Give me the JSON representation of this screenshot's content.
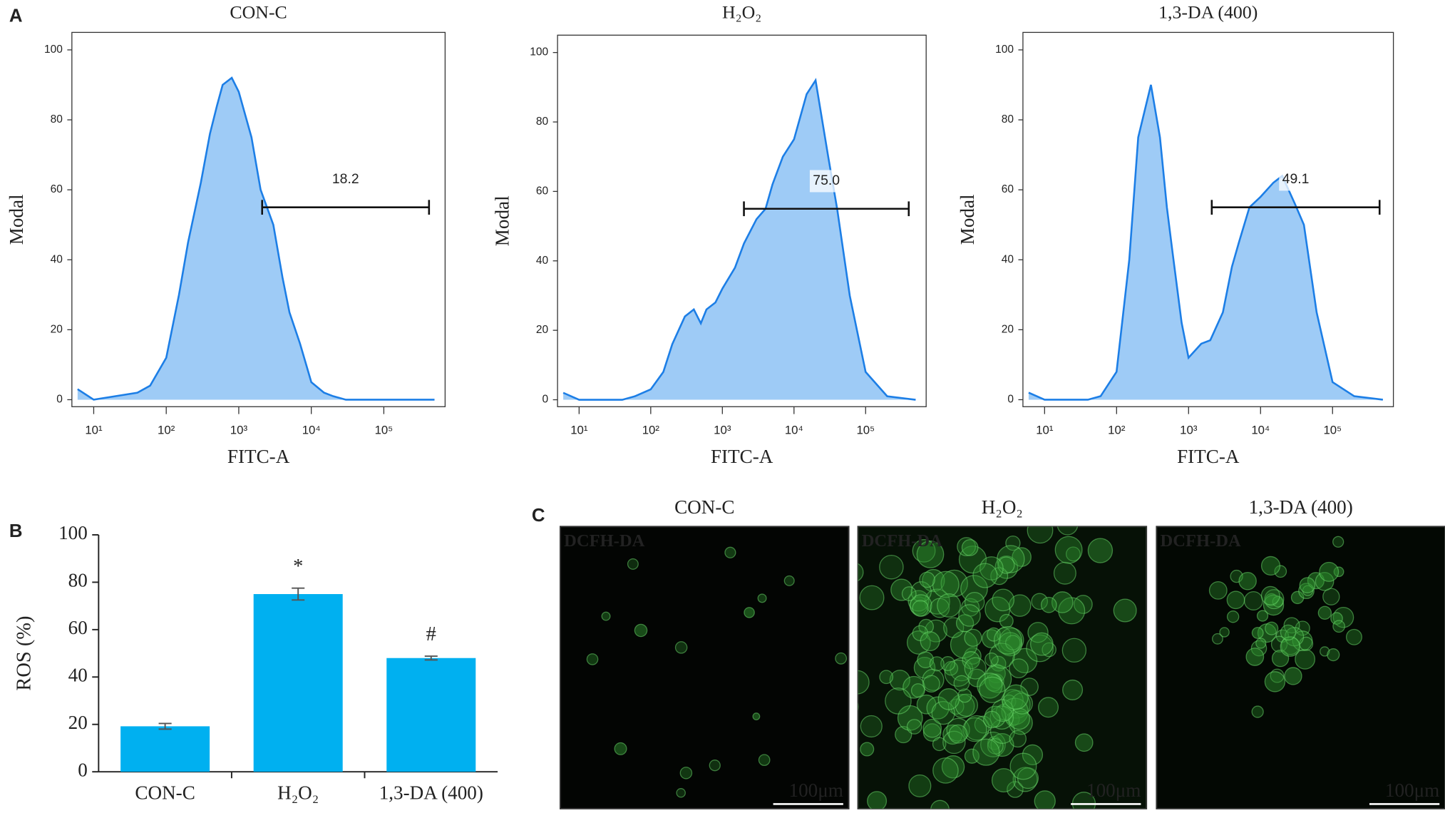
{
  "panel_labels": [
    "A",
    "B",
    "C"
  ],
  "chart_data": [
    {
      "type": "area",
      "title": "CON-C",
      "x_label": "FITC-A",
      "y_label": "Modal",
      "log_x": true,
      "x": [
        6,
        10,
        20,
        40,
        60,
        100,
        150,
        200,
        300,
        400,
        500,
        600,
        800,
        1000,
        1500,
        2000,
        3000,
        4000,
        5000,
        7000,
        10000,
        15000,
        20000,
        30000,
        40000,
        60000,
        100000,
        200000,
        500000
      ],
      "values": [
        3,
        0,
        1,
        2,
        4,
        12,
        30,
        45,
        62,
        76,
        84,
        90,
        92,
        88,
        75,
        60,
        50,
        35,
        25,
        16,
        5,
        2,
        1,
        0,
        0,
        0,
        0,
        0,
        0
      ],
      "color": "#1c7ee6",
      "fill": "#9ecbf6",
      "xlim": [
        5,
        700000
      ],
      "ylim": [
        -2,
        105
      ],
      "xticks": [
        {
          "value": 10,
          "label": "10¹"
        },
        {
          "value": 100,
          "label": "10²"
        },
        {
          "value": 1000,
          "label": "10³"
        },
        {
          "value": 10000,
          "label": "10⁴"
        },
        {
          "value": 100000,
          "label": "10⁵"
        }
      ],
      "yticks": [
        0,
        20,
        40,
        60,
        80,
        100
      ],
      "gate": {
        "label": "18.2",
        "x": [
          2100,
          420000
        ],
        "y": 55
      }
    },
    {
      "type": "area",
      "title": "H₂O₂",
      "x_label": "FITC-A",
      "y_label": "Modal",
      "log_x": true,
      "x": [
        6,
        10,
        20,
        40,
        60,
        100,
        150,
        200,
        300,
        400,
        500,
        600,
        800,
        1000,
        1500,
        2000,
        3000,
        4000,
        5000,
        7000,
        10000,
        15000,
        20000,
        30000,
        40000,
        60000,
        100000,
        200000,
        500000
      ],
      "values": [
        2,
        0,
        0,
        0,
        1,
        3,
        8,
        16,
        24,
        26,
        22,
        26,
        28,
        32,
        38,
        45,
        52,
        55,
        62,
        70,
        75,
        88,
        92,
        70,
        55,
        30,
        8,
        1,
        0
      ],
      "color": "#1c7ee6",
      "fill": "#9ecbf6",
      "xlim": [
        5,
        700000
      ],
      "ylim": [
        -2,
        105
      ],
      "xticks": [
        {
          "value": 10,
          "label": "10¹"
        },
        {
          "value": 100,
          "label": "10²"
        },
        {
          "value": 1000,
          "label": "10³"
        },
        {
          "value": 10000,
          "label": "10⁴"
        },
        {
          "value": 100000,
          "label": "10⁵"
        }
      ],
      "yticks": [
        0,
        20,
        40,
        60,
        80,
        100
      ],
      "gate": {
        "label": "75.0",
        "x": [
          2000,
          400000
        ],
        "y": 55
      }
    },
    {
      "type": "area",
      "title": "1,3-DA (400)",
      "x_label": "FITC-A",
      "y_label": "Modal",
      "log_x": true,
      "x": [
        6,
        10,
        20,
        40,
        60,
        100,
        150,
        200,
        300,
        400,
        500,
        600,
        800,
        1000,
        1500,
        2000,
        3000,
        4000,
        5000,
        7000,
        10000,
        15000,
        20000,
        30000,
        40000,
        60000,
        100000,
        200000,
        500000
      ],
      "values": [
        2,
        0,
        0,
        0,
        1,
        8,
        40,
        75,
        90,
        75,
        55,
        42,
        22,
        12,
        16,
        17,
        25,
        38,
        45,
        55,
        58,
        62,
        64,
        56,
        50,
        25,
        5,
        1,
        0
      ],
      "color": "#1c7ee6",
      "fill": "#9ecbf6",
      "xlim": [
        5,
        700000
      ],
      "ylim": [
        -2,
        105
      ],
      "xticks": [
        {
          "value": 10,
          "label": "10¹"
        },
        {
          "value": 100,
          "label": "10²"
        },
        {
          "value": 1000,
          "label": "10³"
        },
        {
          "value": 10000,
          "label": "10⁴"
        },
        {
          "value": 100000,
          "label": "10⁵"
        }
      ],
      "yticks": [
        0,
        20,
        40,
        60,
        80,
        100
      ],
      "gate": {
        "label": "49.1",
        "x": [
          2100,
          450000
        ],
        "y": 55
      }
    },
    {
      "type": "bar",
      "y_label": "ROS (%)",
      "categories": [
        "CON-C",
        "H₂O₂",
        "1,3-DA (400)"
      ],
      "values": [
        19.2,
        75,
        48
      ],
      "errors": [
        1.2,
        2.5,
        0.8
      ],
      "annotations": [
        null,
        "*",
        "#"
      ],
      "color": "#00b0f0",
      "ylim": [
        0,
        100
      ],
      "yticks": [
        0,
        20,
        40,
        60,
        80,
        100
      ]
    }
  ],
  "images": {
    "panels": [
      {
        "title": "CON-C",
        "stain": "DCFH-DA",
        "scale_bar": "100μm"
      },
      {
        "title": "H₂O₂",
        "stain": "DCFH-DA",
        "scale_bar": "100μm"
      },
      {
        "title": "1,3-DA (400)",
        "stain": "DCFH-DA",
        "scale_bar": "100μm"
      }
    ]
  }
}
